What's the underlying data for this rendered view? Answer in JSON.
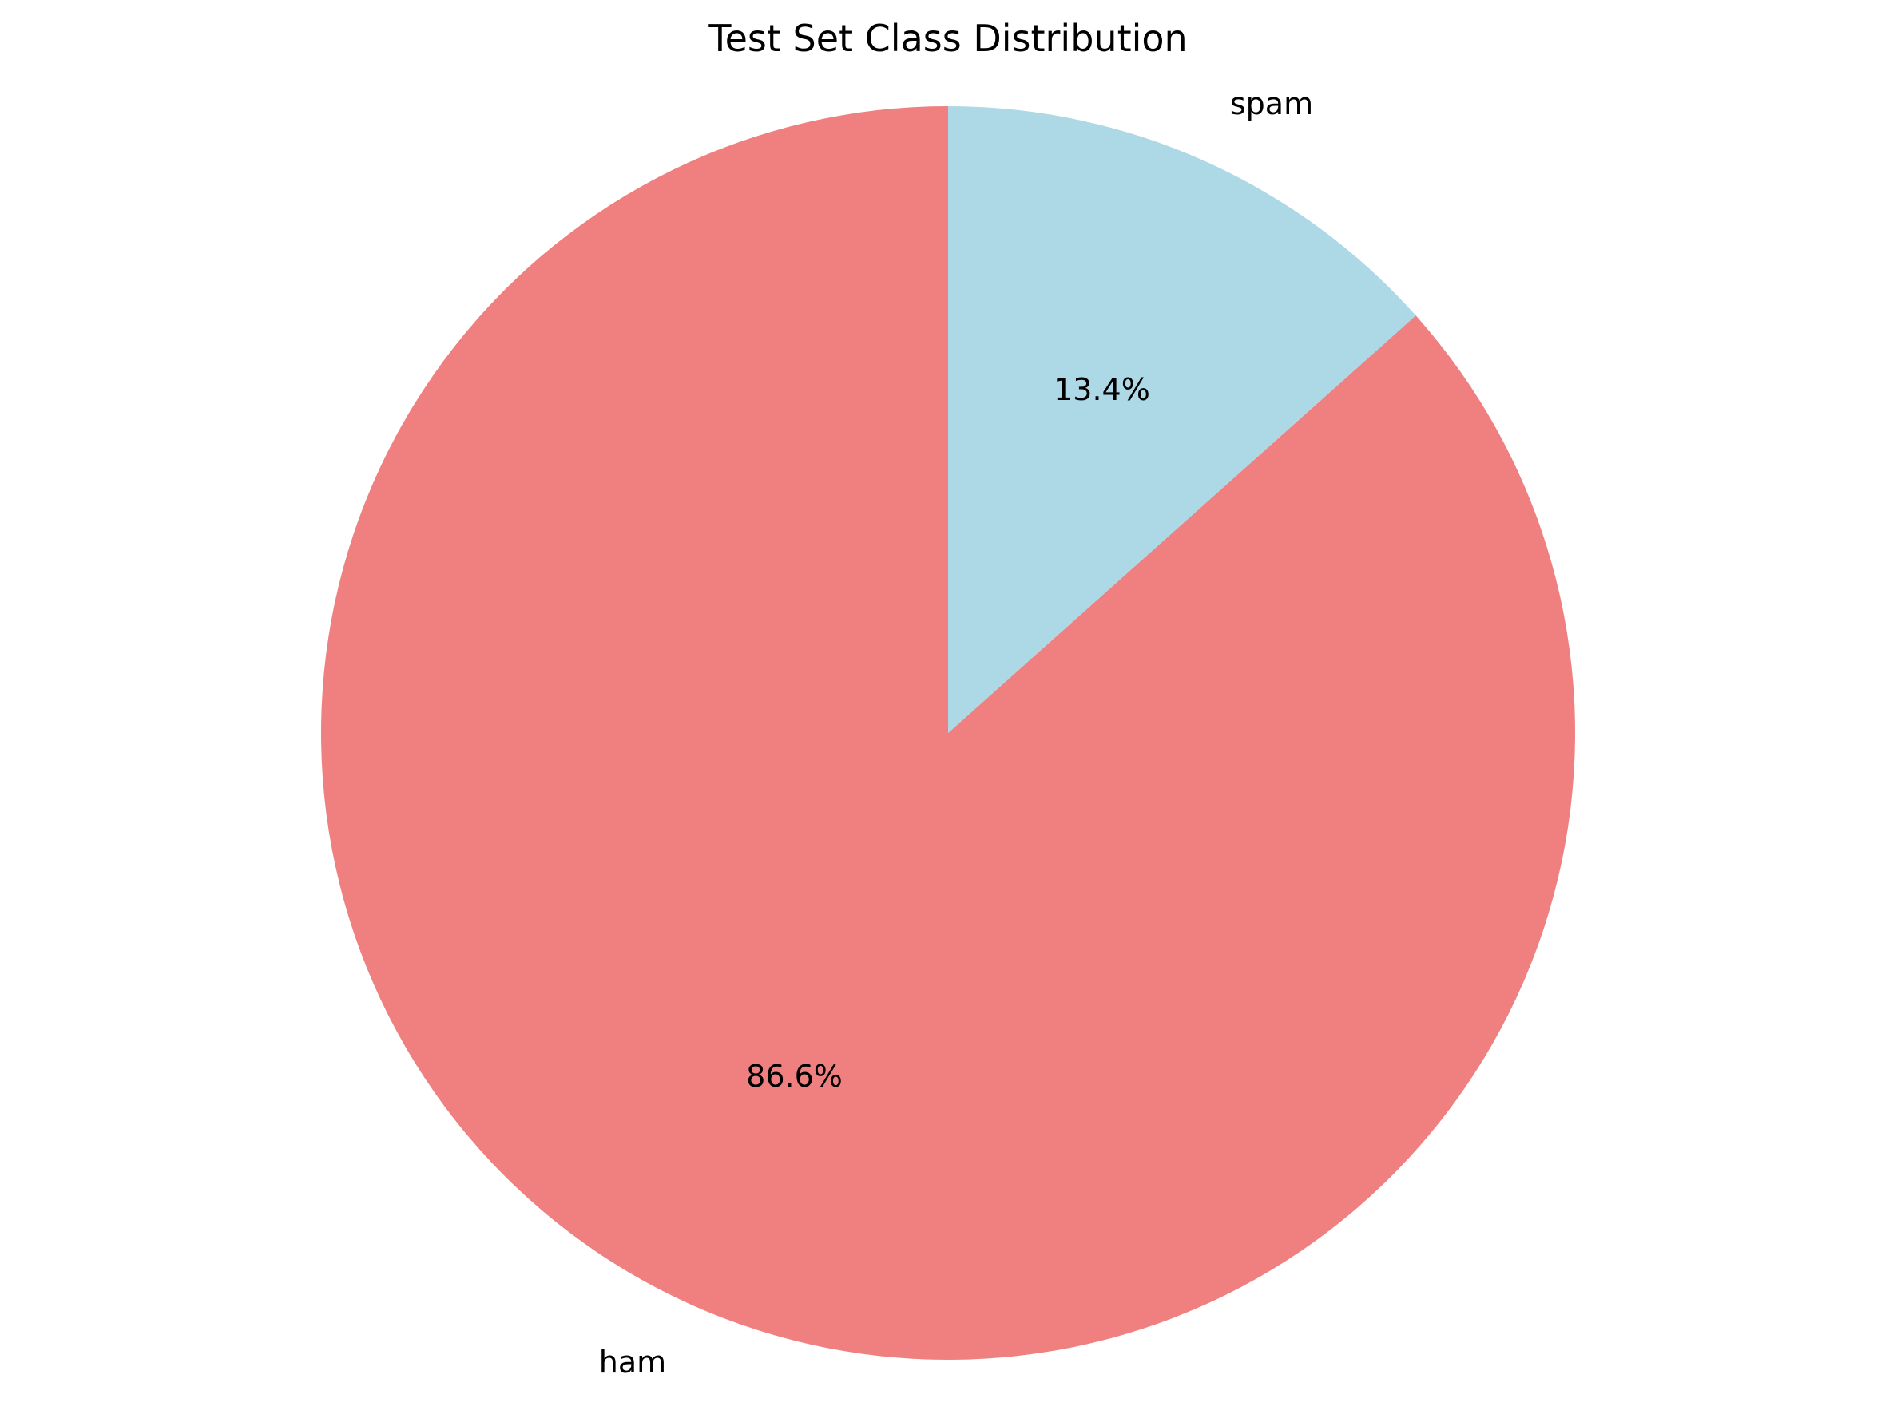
{
  "chart_data": {
    "type": "pie",
    "title": "Test Set Class Distribution",
    "start_angle_deg": 90,
    "direction": "counterclockwise",
    "slices": [
      {
        "label": "ham",
        "value": 86.6,
        "pct_label": "86.6%",
        "color": "#F08080"
      },
      {
        "label": "spam",
        "value": 13.4,
        "pct_label": "13.4%",
        "color": "#ADD8E6"
      }
    ]
  }
}
